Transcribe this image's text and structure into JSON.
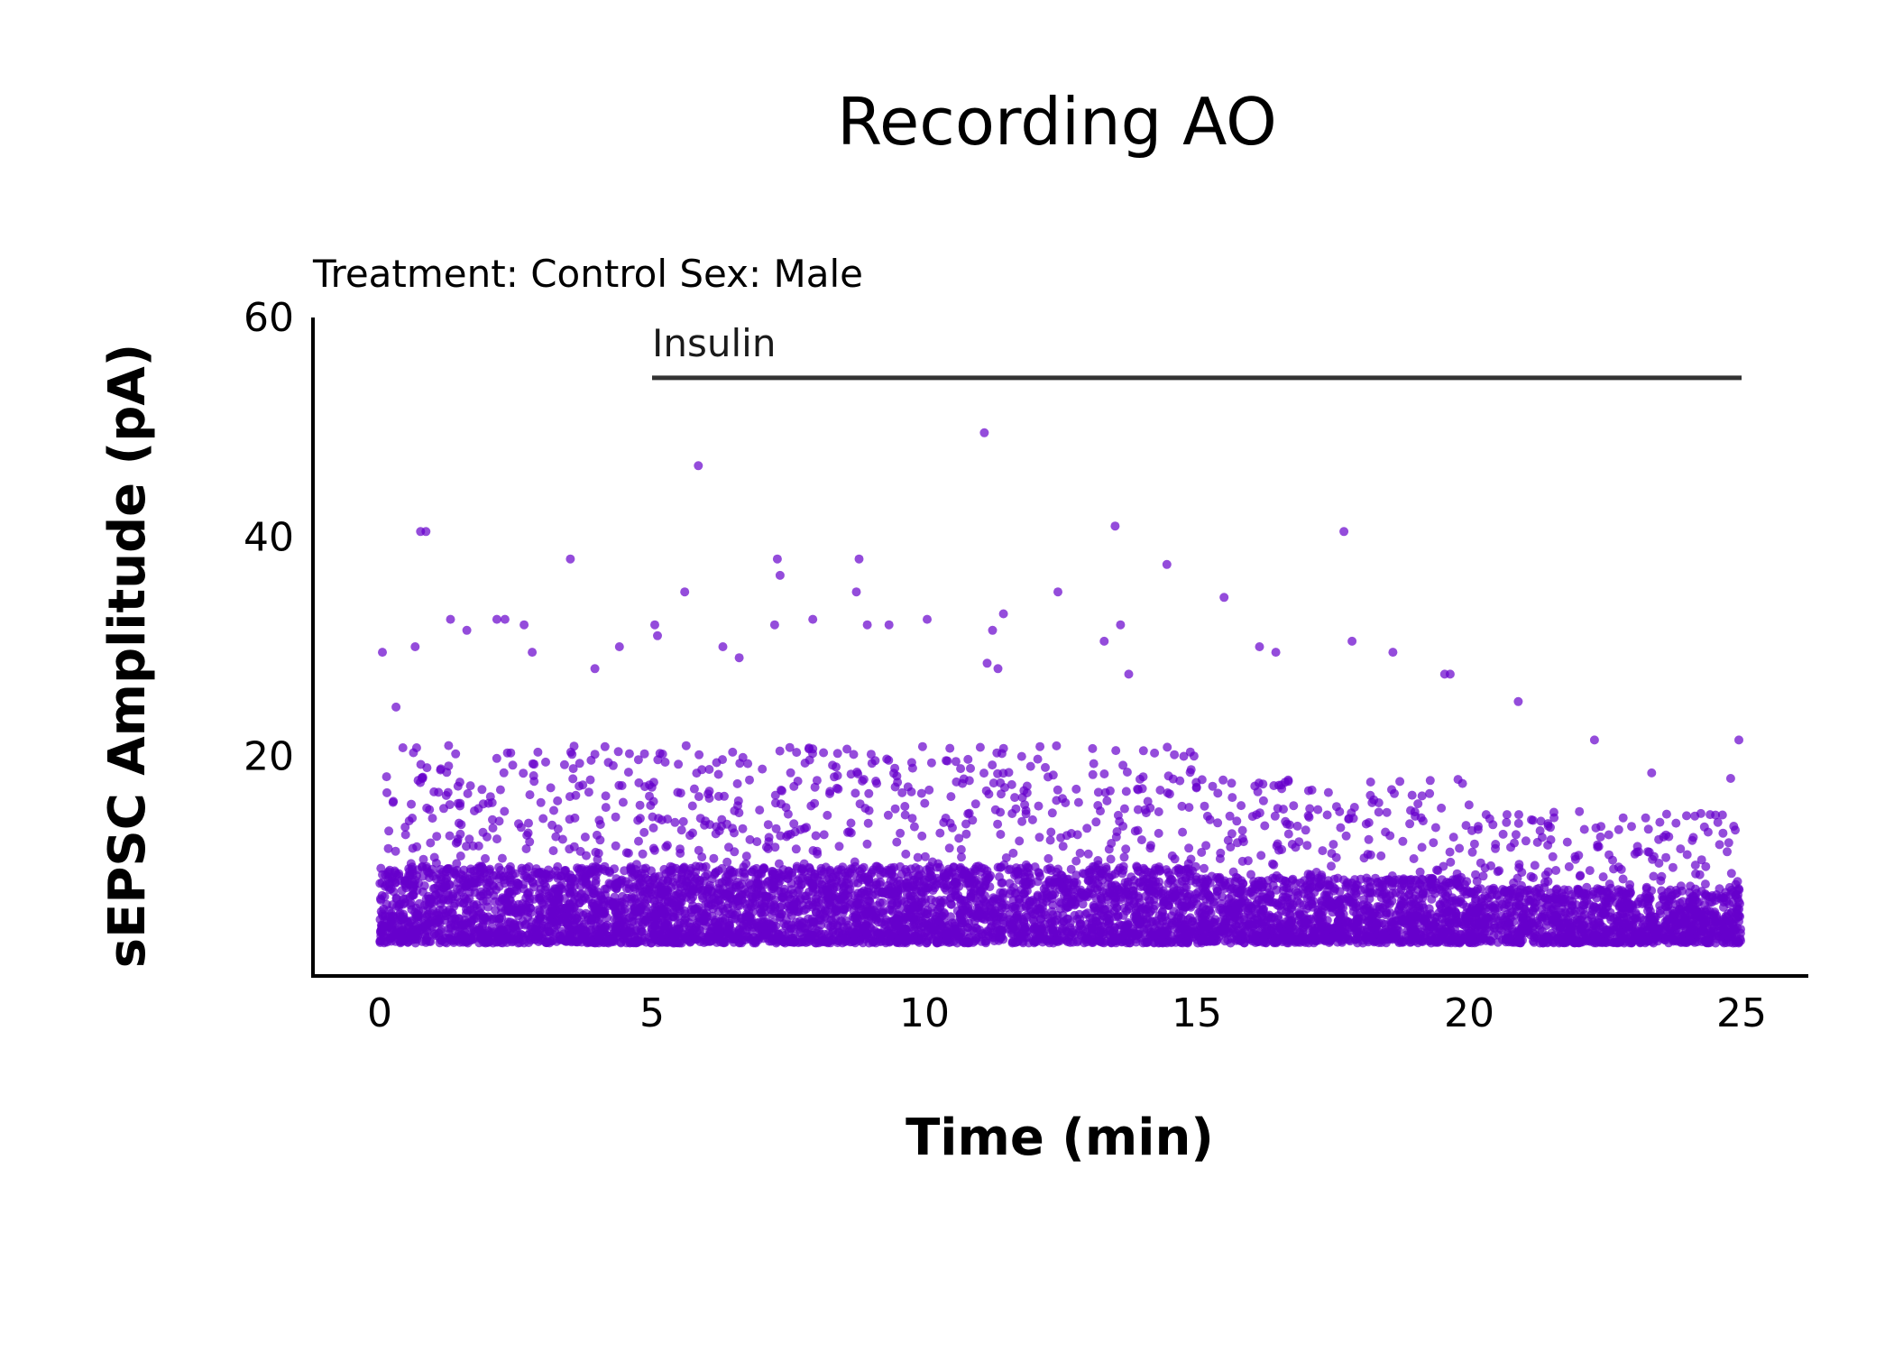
{
  "chart_data": {
    "type": "scatter",
    "title": "Recording AO",
    "subtitle": "Treatment: Control  Sex: Male",
    "xlabel": "Time (min)",
    "ylabel": "sEPSC Amplitude (pA)",
    "xlim": [
      -1.25,
      26.2
    ],
    "ylim": [
      0,
      60
    ],
    "x_ticks": [
      "0",
      "5",
      "10",
      "15",
      "20",
      "25"
    ],
    "y_ticks": [
      "20",
      "40",
      "60"
    ],
    "grid": false,
    "legend": "none",
    "point_color": "#6600cc",
    "point_opacity": 0.7,
    "annotation": {
      "label": "Insulin",
      "x_start": 5,
      "x_end": 25,
      "y": 54.5
    },
    "highlight_points": [
      [
        0.05,
        29.5
      ],
      [
        0.3,
        24.5
      ],
      [
        0.65,
        30
      ],
      [
        0.75,
        40.5
      ],
      [
        0.85,
        40.5
      ],
      [
        1.3,
        32.5
      ],
      [
        1.6,
        31.5
      ],
      [
        2.15,
        32.5
      ],
      [
        2.3,
        32.5
      ],
      [
        2.65,
        32
      ],
      [
        2.8,
        29.5
      ],
      [
        3.5,
        38
      ],
      [
        3.95,
        28
      ],
      [
        4.4,
        30
      ],
      [
        5.05,
        32
      ],
      [
        5.1,
        31
      ],
      [
        5.6,
        35
      ],
      [
        5.85,
        46.5
      ],
      [
        6.3,
        30
      ],
      [
        6.6,
        29
      ],
      [
        7.25,
        32
      ],
      [
        7.3,
        38
      ],
      [
        7.35,
        36.5
      ],
      [
        7.95,
        32.5
      ],
      [
        8.75,
        35
      ],
      [
        8.8,
        38
      ],
      [
        8.95,
        32
      ],
      [
        9.35,
        32
      ],
      [
        10.05,
        32.5
      ],
      [
        11.1,
        49.5
      ],
      [
        11.15,
        28.5
      ],
      [
        11.25,
        31.5
      ],
      [
        11.35,
        28
      ],
      [
        11.45,
        33
      ],
      [
        12.45,
        35
      ],
      [
        13.3,
        30.5
      ],
      [
        13.5,
        41
      ],
      [
        13.6,
        32
      ],
      [
        13.75,
        27.5
      ],
      [
        14.45,
        37.5
      ],
      [
        15.5,
        34.5
      ],
      [
        16.15,
        30
      ],
      [
        16.45,
        29.5
      ],
      [
        17.7,
        40.5
      ],
      [
        17.85,
        30.5
      ],
      [
        18.6,
        29.5
      ],
      [
        19.55,
        27.5
      ],
      [
        19.65,
        27.5
      ],
      [
        20.9,
        25
      ],
      [
        22.3,
        21.5
      ],
      [
        23.35,
        18.5
      ],
      [
        24.8,
        18
      ],
      [
        24.95,
        21.5
      ]
    ],
    "bulk_series": {
      "x_range": [
        0,
        25
      ],
      "y_floor": 3,
      "segments": [
        {
          "x_from": 0,
          "x_to": 5,
          "n": 1500,
          "y_typical": 8,
          "y_upper": 17
        },
        {
          "x_from": 5,
          "x_to": 15,
          "n": 3000,
          "y_typical": 8,
          "y_upper": 17
        },
        {
          "x_from": 15,
          "x_to": 20,
          "n": 1400,
          "y_typical": 7,
          "y_upper": 14
        },
        {
          "x_from": 20,
          "x_to": 25,
          "n": 1300,
          "y_typical": 6,
          "y_upper": 11
        }
      ]
    }
  }
}
